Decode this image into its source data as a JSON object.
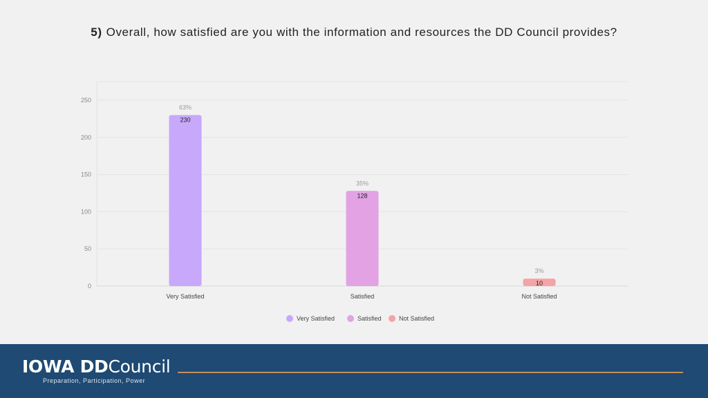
{
  "question": {
    "number": "5)",
    "text": "Overall, how satisfied are you with the information and resources the DD Council provides?"
  },
  "chart_data": {
    "type": "bar",
    "title": "",
    "xlabel": "",
    "ylabel": "",
    "categories": [
      "Very Satisfied",
      "Satisfied",
      "Not Satisfied"
    ],
    "values": [
      230,
      128,
      10
    ],
    "percent_labels": [
      "63%",
      "35%",
      "3%"
    ],
    "value_labels": [
      "230",
      "128",
      "10"
    ],
    "colors": [
      "#c7a8fb",
      "#e2a2e4",
      "#f4a3a6"
    ],
    "ylim": [
      0,
      250
    ],
    "yticks": [
      0,
      50,
      100,
      150,
      200,
      250
    ],
    "grid": true,
    "legend_position": "bottom-center",
    "legend": [
      "Very Satisfied",
      "Satisfied",
      "Not Satisfied"
    ]
  },
  "footer": {
    "logo_iowa": "IOWA",
    "logo_dd": "DD",
    "logo_council": "Council",
    "tagline": "Preparation, Participation, Power"
  }
}
